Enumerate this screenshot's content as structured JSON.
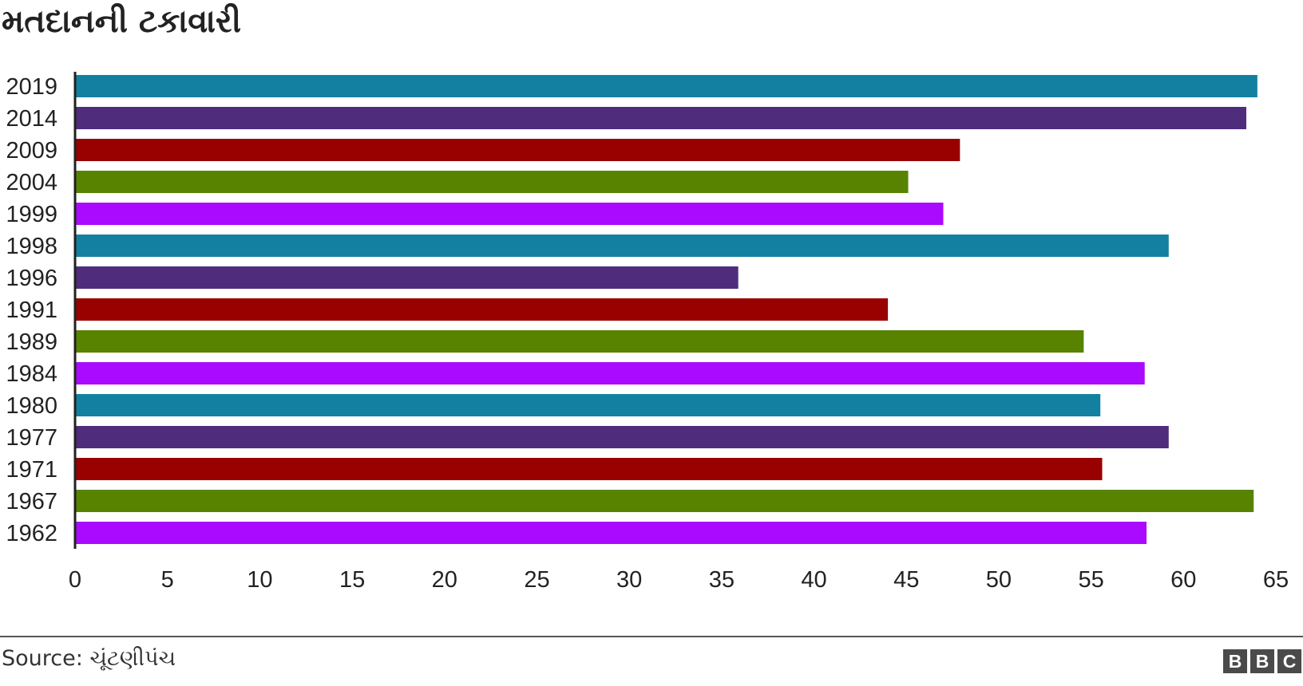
{
  "title": "મતદાનની ટકાવારી",
  "source": "Source: ચૂંટણીપંચ",
  "logo": [
    "B",
    "B",
    "C"
  ],
  "chart_data": {
    "type": "bar",
    "orientation": "horizontal",
    "categories": [
      "2019",
      "2014",
      "2009",
      "2004",
      "1999",
      "1998",
      "1996",
      "1991",
      "1989",
      "1984",
      "1980",
      "1977",
      "1971",
      "1967",
      "1962"
    ],
    "values": [
      64.0,
      63.4,
      47.9,
      45.1,
      47.0,
      59.2,
      35.9,
      44.0,
      54.6,
      57.9,
      55.5,
      59.2,
      55.6,
      63.8,
      58.0
    ],
    "bar_colors": [
      "#1380A1",
      "#4F2C7C",
      "#990000",
      "#588300",
      "#AA0AFF",
      "#1380A1",
      "#4F2C7C",
      "#990000",
      "#588300",
      "#AA0AFF",
      "#1380A1",
      "#4F2C7C",
      "#990000",
      "#588300",
      "#AA0AFF"
    ],
    "xlim": [
      0,
      65
    ],
    "xticks": [
      "0",
      "5",
      "10",
      "15",
      "20",
      "25",
      "30",
      "35",
      "40",
      "45",
      "50",
      "55",
      "60",
      "65"
    ],
    "grid": false
  }
}
